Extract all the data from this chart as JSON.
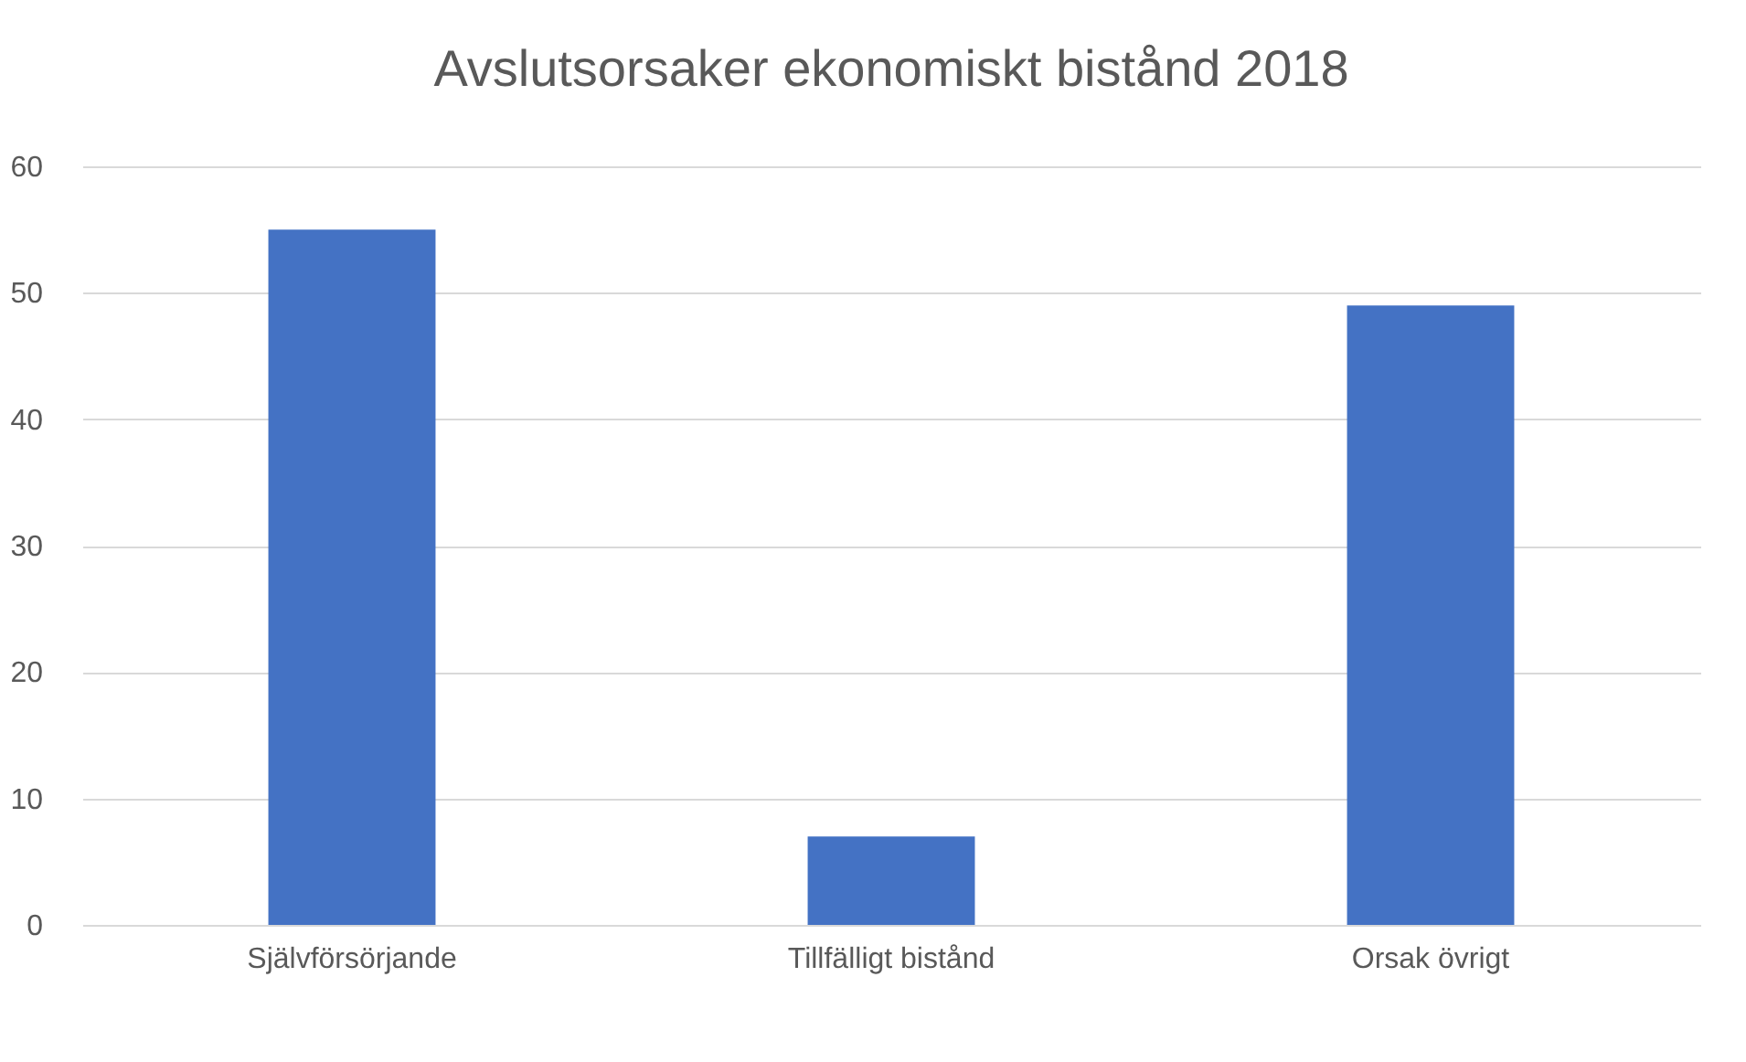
{
  "chart_data": {
    "type": "bar",
    "title": "Avslutsorsaker ekonomiskt bistånd 2018",
    "categories": [
      "Självförsörjande",
      "Tillfälligt bistånd",
      "Orsak övrigt"
    ],
    "values": [
      55,
      7,
      49
    ],
    "color": "#4472c4",
    "ylim": [
      0,
      60
    ],
    "yticks": [
      0,
      10,
      20,
      30,
      40,
      50,
      60
    ],
    "grid": "y"
  }
}
